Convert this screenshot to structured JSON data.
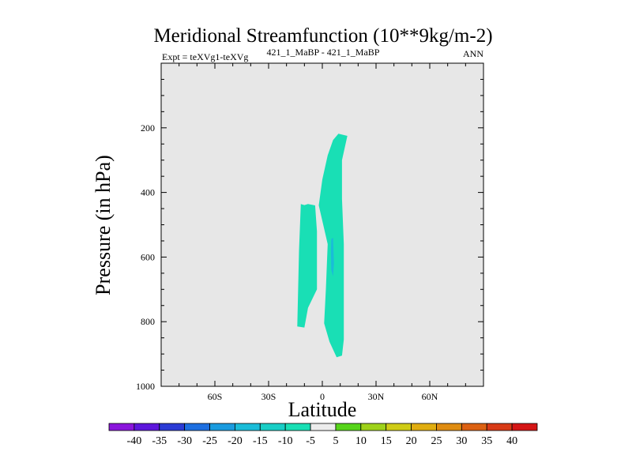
{
  "chart_data": {
    "type": "contour",
    "title": "Meridional Streamfunction (10**9kg/m-2)",
    "subtitle_left": "Expt = teXVg1-teXVg",
    "subtitle_center": "421_1_MaBP - 421_1_MaBP",
    "subtitle_right": "ANN",
    "xlabel": "Latitude",
    "ylabel": "Pressure (in hPa)",
    "xlim": [
      -90,
      90
    ],
    "ylim": [
      1000,
      0
    ],
    "x_ticks": [
      {
        "value": -60,
        "label": "60S"
      },
      {
        "value": -30,
        "label": "30S"
      },
      {
        "value": 0,
        "label": "0"
      },
      {
        "value": 30,
        "label": "30N"
      },
      {
        "value": 60,
        "label": "60N"
      }
    ],
    "y_ticks": [
      {
        "value": 200,
        "label": "200"
      },
      {
        "value": 400,
        "label": "400"
      },
      {
        "value": 600,
        "label": "600"
      },
      {
        "value": 800,
        "label": "800"
      },
      {
        "value": 1000,
        "label": "1000"
      }
    ],
    "background_level": "-5 to 5",
    "regions": [
      {
        "name": "north-lobe",
        "level": "-10 to -5",
        "color": "#19dfb5",
        "points": [
          [
            1,
            805
          ],
          [
            2,
            700
          ],
          [
            3,
            560
          ],
          [
            -2,
            440
          ],
          [
            0,
            360
          ],
          [
            3,
            285
          ],
          [
            6,
            238
          ],
          [
            9,
            218
          ],
          [
            14,
            225
          ],
          [
            11,
            300
          ],
          [
            11,
            420
          ],
          [
            12,
            560
          ],
          [
            12,
            760
          ],
          [
            12,
            855
          ],
          [
            11,
            905
          ],
          [
            8,
            910
          ],
          [
            4,
            862
          ]
        ]
      },
      {
        "name": "south-lobe",
        "level": "-10 to -5",
        "color": "#19dfb5",
        "points": [
          [
            -14,
            815
          ],
          [
            -13,
            580
          ],
          [
            -12,
            436
          ],
          [
            -10,
            439
          ],
          [
            -8,
            436
          ],
          [
            -4,
            440
          ],
          [
            -3,
            520
          ],
          [
            -3,
            700
          ],
          [
            -8,
            757
          ],
          [
            -10,
            818
          ]
        ]
      },
      {
        "name": "inner-core",
        "level": "-15 to -10",
        "color": "#1abcd8",
        "points": [
          [
            5,
            545
          ],
          [
            6,
            540
          ],
          [
            6.5,
            620
          ],
          [
            6,
            660
          ],
          [
            5,
            640
          ],
          [
            4.8,
            580
          ]
        ]
      }
    ],
    "colorbar": {
      "labels": [
        "-40",
        "-35",
        "-30",
        "-25",
        "-20",
        "-15",
        "-10",
        "-5",
        "5",
        "10",
        "15",
        "20",
        "25",
        "30",
        "35",
        "40"
      ],
      "colors": [
        "#8a15dc",
        "#5d17dc",
        "#2b3bd5",
        "#1d6fe0",
        "#1a9bdf",
        "#1abcd8",
        "#19cec6",
        "#19dfb5",
        "#ececec",
        "#56d41a",
        "#9ed21a",
        "#cfcc16",
        "#e0ad10",
        "#df8c11",
        "#dc6112",
        "#d83a16",
        "#d41515"
      ]
    }
  }
}
